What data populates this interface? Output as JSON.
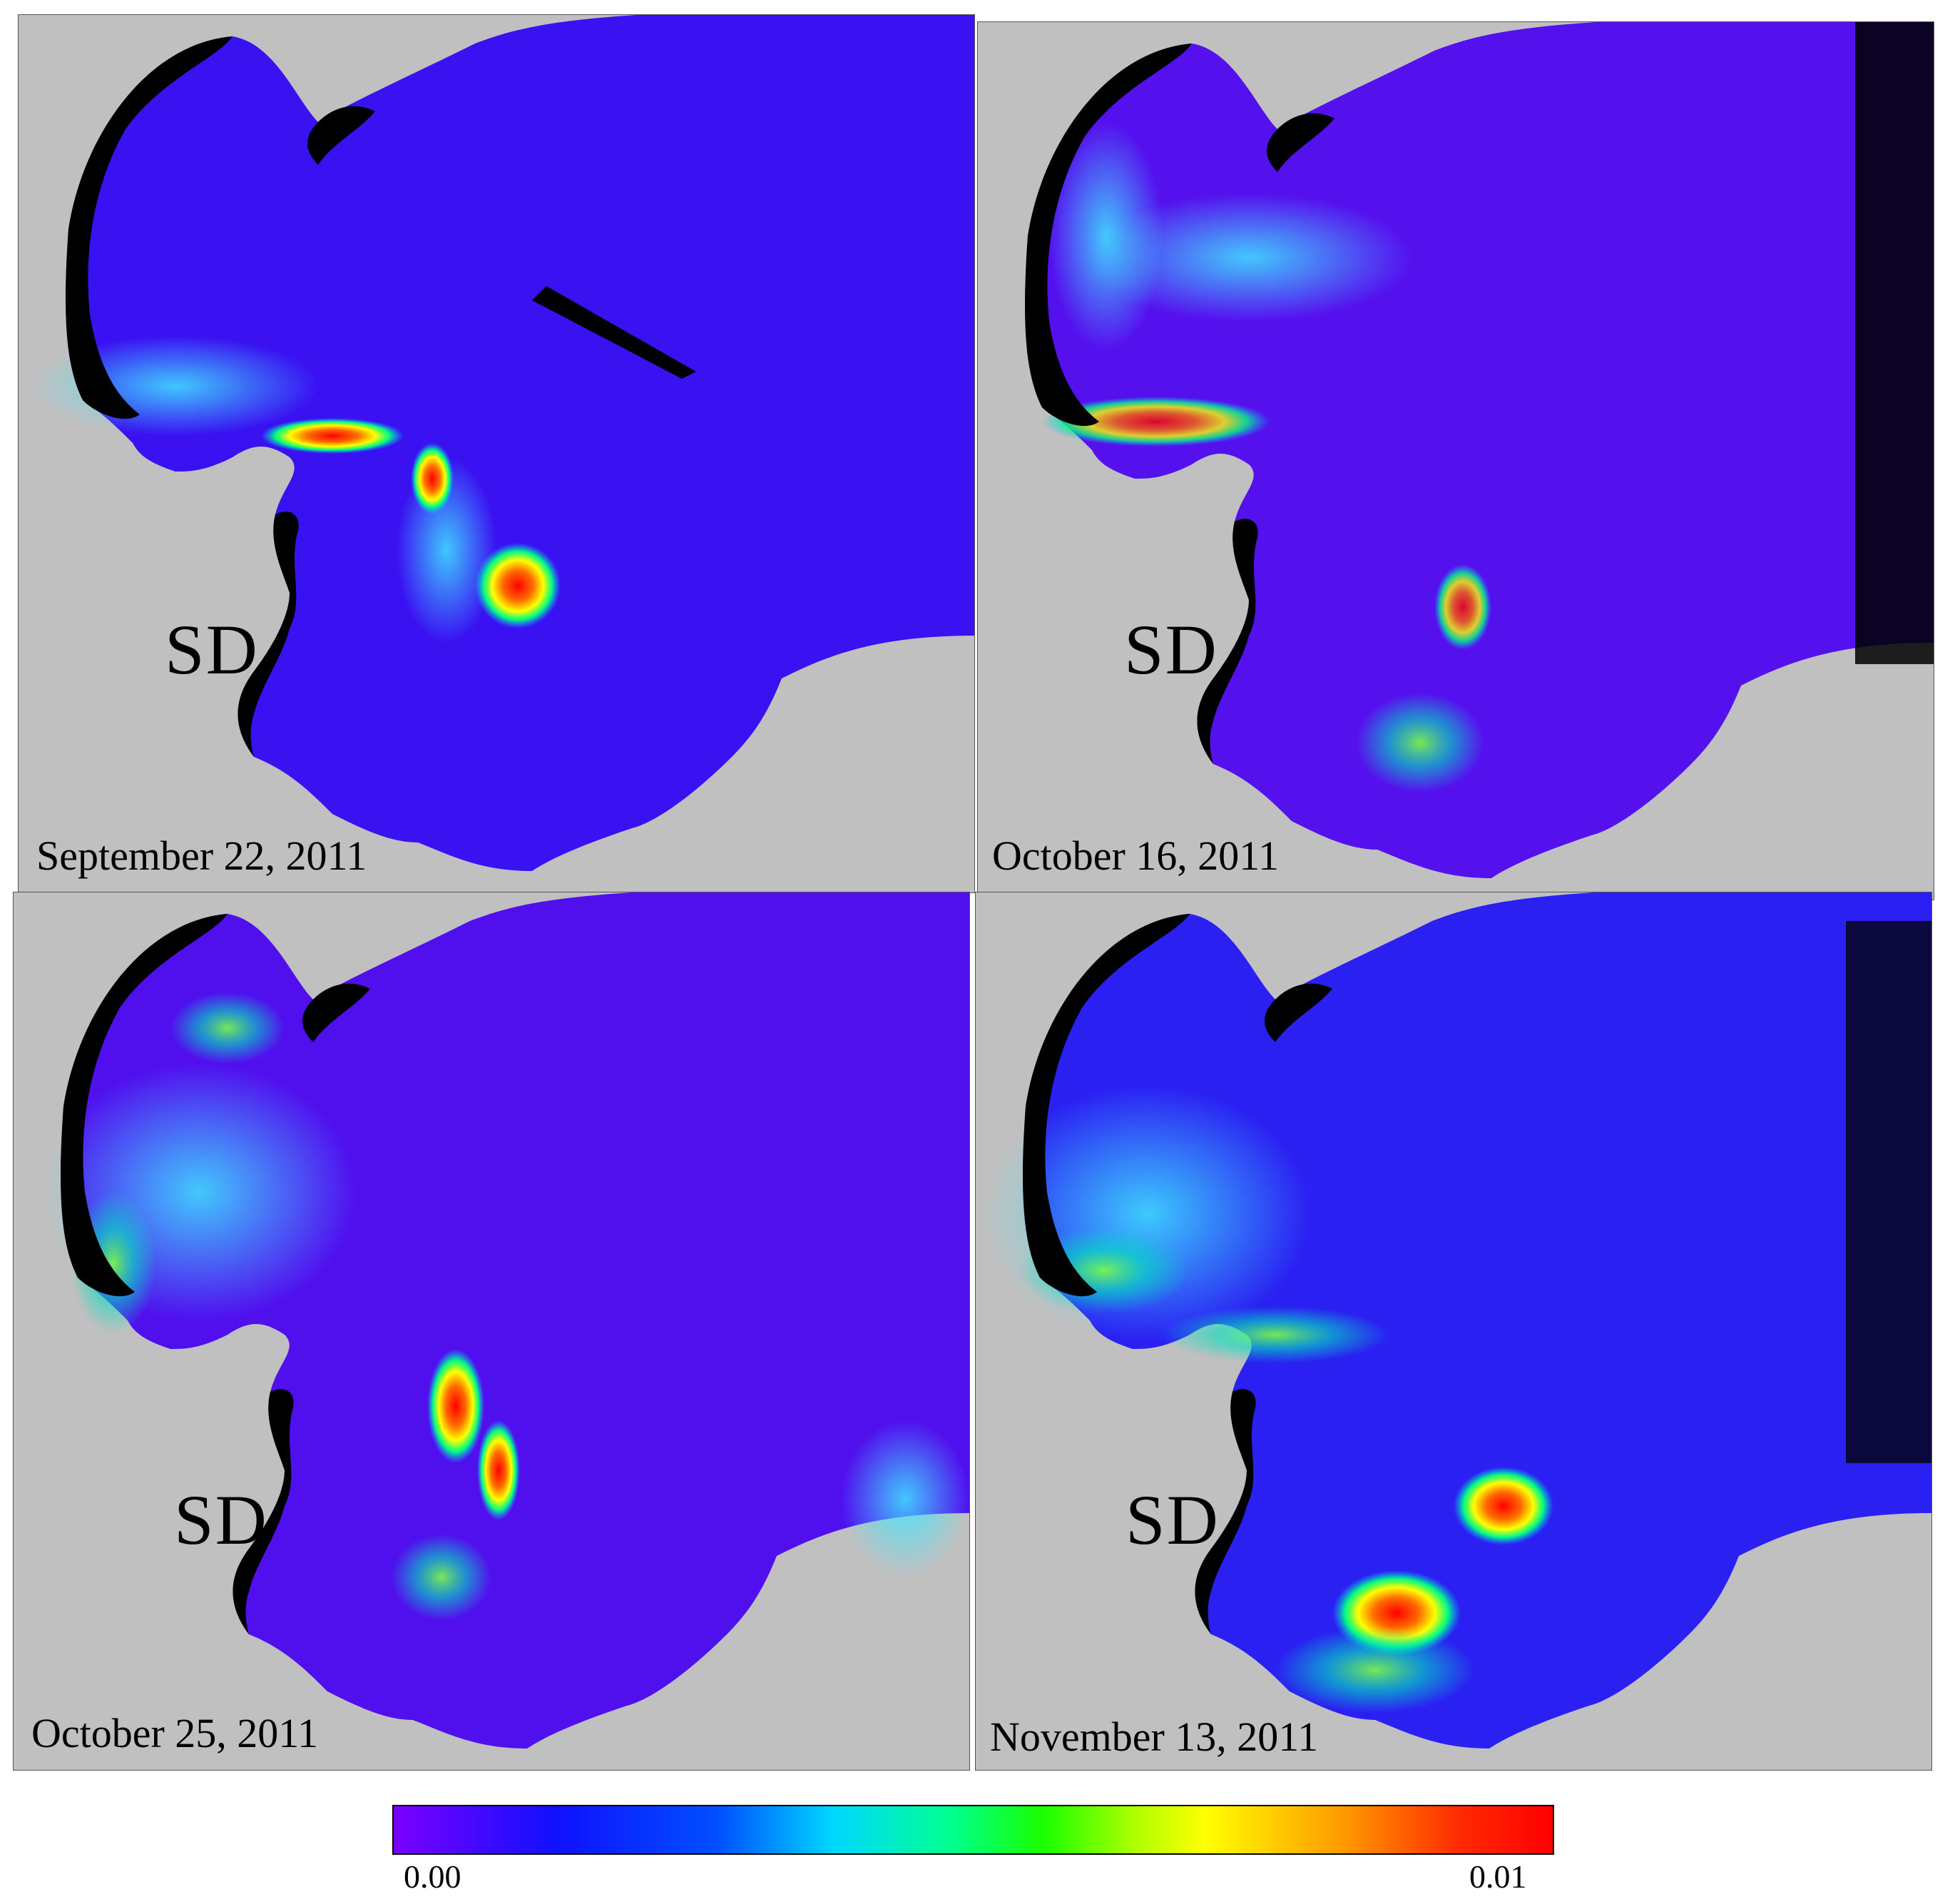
{
  "panels": [
    {
      "site_label": "SD",
      "date": "September 22, 2011"
    },
    {
      "site_label": "SD",
      "date": "October 16, 2011"
    },
    {
      "site_label": "SD",
      "date": "October 25, 2011"
    },
    {
      "site_label": "SD",
      "date": "November 13, 2011"
    }
  ],
  "colorbar": {
    "min_label": "0.00",
    "max_label": "0.01",
    "colors": [
      "#7a00ff",
      "#1010ff",
      "#0050ff",
      "#00d8ff",
      "#00ff90",
      "#19ff00",
      "#ffff00",
      "#ff9900",
      "#ff0000"
    ]
  },
  "colors": {
    "land": "#c0c0c0",
    "coast_mask": "#000000",
    "water_base": "#3510f0"
  }
}
